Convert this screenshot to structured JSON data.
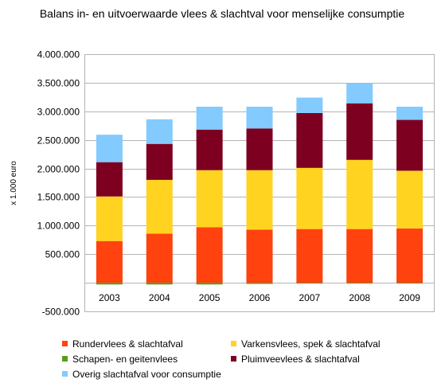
{
  "chart_data": {
    "type": "bar",
    "stacked": true,
    "title": "Balans in- en uitvoerwaarde vlees & slachtval voor menselijke consumptie",
    "ylabel": "x 1.000 euro",
    "xlabel": "",
    "categories": [
      "2003",
      "2004",
      "2005",
      "2006",
      "2007",
      "2008",
      "2009"
    ],
    "ylim": [
      -500000,
      4000000
    ],
    "yticks": [
      -500000,
      0,
      500000,
      1000000,
      1500000,
      2000000,
      2500000,
      3000000,
      3500000,
      4000000
    ],
    "ytick_labels": [
      "-500.000",
      "",
      "500.000",
      "1.000.000",
      "1.500.000",
      "2.000.000",
      "2.500.000",
      "3.000.000",
      "3.500.000",
      "4.000.000"
    ],
    "grid": true,
    "legend_position": "bottom",
    "series": [
      {
        "name": "Rundervlees & slachtafval",
        "color": "#ff420e",
        "values": [
          730000,
          860000,
          970000,
          930000,
          940000,
          940000,
          950000
        ]
      },
      {
        "name": "Varkensvlees, spek & slachtafval",
        "color": "#ffd320",
        "values": [
          780000,
          940000,
          1000000,
          1040000,
          1070000,
          1210000,
          1010000
        ]
      },
      {
        "name": "Schapen- en geitenvlees",
        "color": "#579d1c",
        "values": [
          -30000,
          -30000,
          -30000,
          -20000,
          -10000,
          -10000,
          -10000
        ]
      },
      {
        "name": "Pluimveevlees & slachtafval",
        "color": "#7e0021",
        "values": [
          600000,
          630000,
          710000,
          730000,
          960000,
          990000,
          890000
        ]
      },
      {
        "name": "Overig slachtafval voor consumptie",
        "color": "#83caff",
        "values": [
          480000,
          430000,
          400000,
          380000,
          270000,
          350000,
          230000
        ]
      }
    ]
  }
}
